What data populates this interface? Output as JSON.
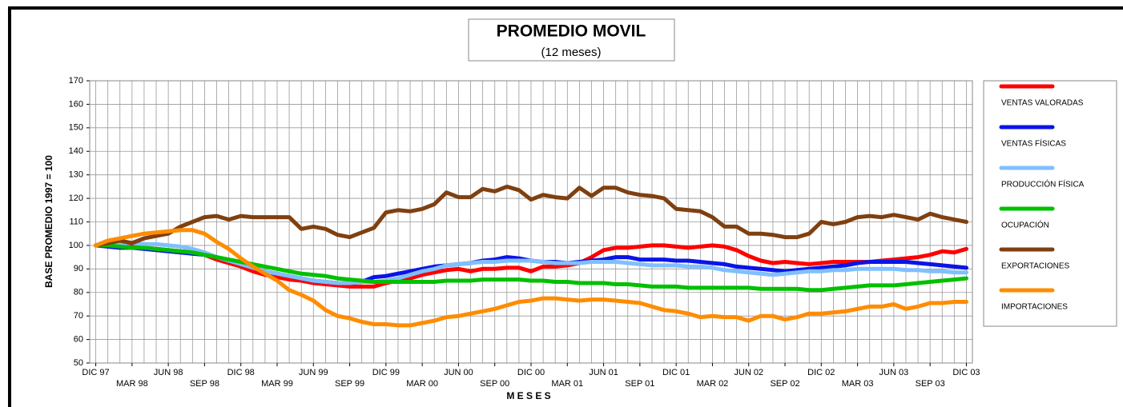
{
  "chart_data": {
    "type": "line",
    "title": "PROMEDIO MOVIL",
    "subtitle": "(12 meses)",
    "x_label": "M E S E S",
    "y_label": "BASE PROMEDIO 1997 = 100",
    "categories": [
      "DIC 97",
      null,
      null,
      "MAR 98",
      null,
      null,
      "JUN 98",
      null,
      null,
      "SEP 98",
      null,
      null,
      "DIC 98",
      null,
      null,
      "MAR 99",
      null,
      null,
      "JUN 99",
      null,
      null,
      "SEP 99",
      null,
      null,
      "DIC 99",
      null,
      null,
      "MAR 00",
      null,
      null,
      "JUN 00",
      null,
      null,
      "SEP 00",
      null,
      null,
      "DIC 00",
      null,
      null,
      "MAR 01",
      null,
      null,
      "JUN 01",
      null,
      null,
      "SEP 01",
      null,
      null,
      "DIC 01",
      null,
      null,
      "MAR 02",
      null,
      null,
      "JUN 02",
      null,
      null,
      "SEP 02",
      null,
      null,
      "DIC 02",
      null,
      null,
      "MAR 03",
      null,
      null,
      "JUN 03",
      null,
      null,
      "SEP 03",
      null,
      null,
      "DIC 03"
    ],
    "ylim": [
      50,
      170
    ],
    "yticks": [
      50,
      60,
      70,
      80,
      90,
      100,
      110,
      120,
      130,
      140,
      150,
      160,
      170
    ],
    "grid": true,
    "legend": "right",
    "series": [
      {
        "name": "VENTAS VALORADAS",
        "color": "#ff0000",
        "values": [
          100,
          100,
          100,
          99.5,
          99,
          98.5,
          98,
          97.5,
          97,
          96,
          94,
          92.5,
          91,
          89,
          87.5,
          86.5,
          85.5,
          85,
          84,
          83.5,
          83,
          82.5,
          82.5,
          82.5,
          84,
          85,
          86,
          87.5,
          88.5,
          89.5,
          90,
          89,
          90,
          90,
          90.5,
          90.5,
          89,
          91,
          91,
          91.5,
          92.5,
          95,
          98,
          99,
          99,
          99.5,
          100,
          100,
          99.5,
          99,
          99.5,
          100,
          99.5,
          98,
          95.5,
          93.5,
          92.5,
          93,
          92.5,
          92,
          92.5,
          93,
          93,
          93,
          93,
          93.5,
          94,
          94.5,
          95,
          96,
          97.5,
          97,
          98.5
        ]
      },
      {
        "name": "VENTAS FÍSICAS",
        "color": "#0a14e6",
        "values": [
          100,
          99.5,
          99,
          99,
          98.5,
          98,
          97.5,
          97,
          96.5,
          96,
          95,
          93.5,
          92,
          90.5,
          89,
          88,
          87,
          86,
          85,
          84.5,
          84,
          84,
          84.5,
          86.5,
          87,
          88,
          89,
          90,
          91,
          91.5,
          92,
          92.5,
          93.5,
          94,
          95,
          94.5,
          93.5,
          93,
          93,
          92.5,
          93,
          93.5,
          94,
          95,
          95,
          94,
          94,
          94,
          93.5,
          93.5,
          93,
          92.5,
          92,
          91,
          90.5,
          90,
          89.5,
          89,
          89.5,
          90,
          90.5,
          91,
          91.5,
          92.5,
          93,
          93,
          93,
          93,
          92.5,
          92,
          91.5,
          91,
          90.5
        ]
      },
      {
        "name": "PRODUCCIÓN FÍSICA",
        "color": "#80bfff",
        "values": [
          100,
          100.5,
          101,
          101,
          100.5,
          100.5,
          100,
          99.5,
          98.5,
          97,
          95,
          93.5,
          92,
          90.5,
          89,
          88,
          87,
          86,
          85,
          84.5,
          84,
          84,
          84.5,
          84.5,
          85,
          86,
          87.5,
          89,
          90,
          91.5,
          92,
          92.5,
          93,
          93,
          93.5,
          93.5,
          93.5,
          93,
          92.5,
          92.5,
          92.5,
          93,
          93,
          93,
          92.5,
          92,
          91.5,
          91.5,
          91.5,
          91,
          91,
          90.5,
          89.5,
          89,
          88.5,
          88,
          87.5,
          88,
          88.5,
          89,
          89,
          89.5,
          89.5,
          90,
          90,
          90,
          90,
          89.5,
          89.5,
          89,
          89,
          88.5,
          88.5
        ]
      },
      {
        "name": "OCUPACIÓN",
        "color": "#00c000",
        "values": [
          100,
          100,
          99.5,
          99,
          99,
          98.5,
          98,
          97.5,
          97,
          96,
          95,
          94,
          93,
          92,
          91,
          90,
          89,
          88,
          87.5,
          87,
          86,
          85.5,
          85,
          84.5,
          84.5,
          84.5,
          84.5,
          84.5,
          84.5,
          85,
          85,
          85,
          85.5,
          85.5,
          85.5,
          85.5,
          85,
          85,
          84.5,
          84.5,
          84,
          84,
          84,
          83.5,
          83.5,
          83,
          82.5,
          82.5,
          82.5,
          82,
          82,
          82,
          82,
          82,
          82,
          81.5,
          81.5,
          81.5,
          81.5,
          81,
          81,
          81.5,
          82,
          82.5,
          83,
          83,
          83,
          83.5,
          84,
          84.5,
          85,
          85.5,
          86
        ]
      },
      {
        "name": "EXPORTACIONES",
        "color": "#7f4010",
        "values": [
          100,
          101,
          102,
          101,
          103,
          104,
          105,
          108,
          110,
          112,
          112.5,
          111,
          112.5,
          112,
          112,
          112,
          112,
          107,
          108,
          107,
          104.5,
          103.5,
          105.5,
          107.5,
          114,
          115,
          114.5,
          115.5,
          117.5,
          122.5,
          120.5,
          120.5,
          124,
          123,
          125,
          123.5,
          119.5,
          121.5,
          120.5,
          120,
          124.5,
          121,
          124.5,
          124.5,
          122.5,
          121.5,
          121,
          120,
          115.5,
          115,
          114.5,
          112,
          108,
          108,
          105,
          105,
          104.5,
          103.5,
          103.5,
          105,
          110,
          109,
          110,
          112,
          112.5,
          112,
          113,
          112,
          111,
          113.5,
          112,
          111,
          110
        ]
      },
      {
        "name": "IMPORTACIONES",
        "color": "#ff8c00",
        "values": [
          100,
          102,
          103,
          104,
          105,
          105.5,
          106,
          106.5,
          106.5,
          105,
          101.5,
          98.5,
          94.5,
          91,
          88,
          85,
          81,
          79,
          76.5,
          72.5,
          70,
          69,
          67.5,
          66.5,
          66.5,
          66,
          66,
          67,
          68,
          69.5,
          70,
          71,
          72,
          73,
          74.5,
          76,
          76.5,
          77.5,
          77.5,
          77,
          76.5,
          77,
          77,
          76.5,
          76,
          75.5,
          74,
          72.5,
          72,
          71,
          69.5,
          70,
          69.5,
          69.5,
          68,
          70,
          70,
          68.5,
          69.5,
          71,
          71,
          71.5,
          72,
          73,
          74,
          74,
          75,
          73,
          74,
          75.5,
          75.5,
          76,
          76
        ]
      }
    ]
  }
}
